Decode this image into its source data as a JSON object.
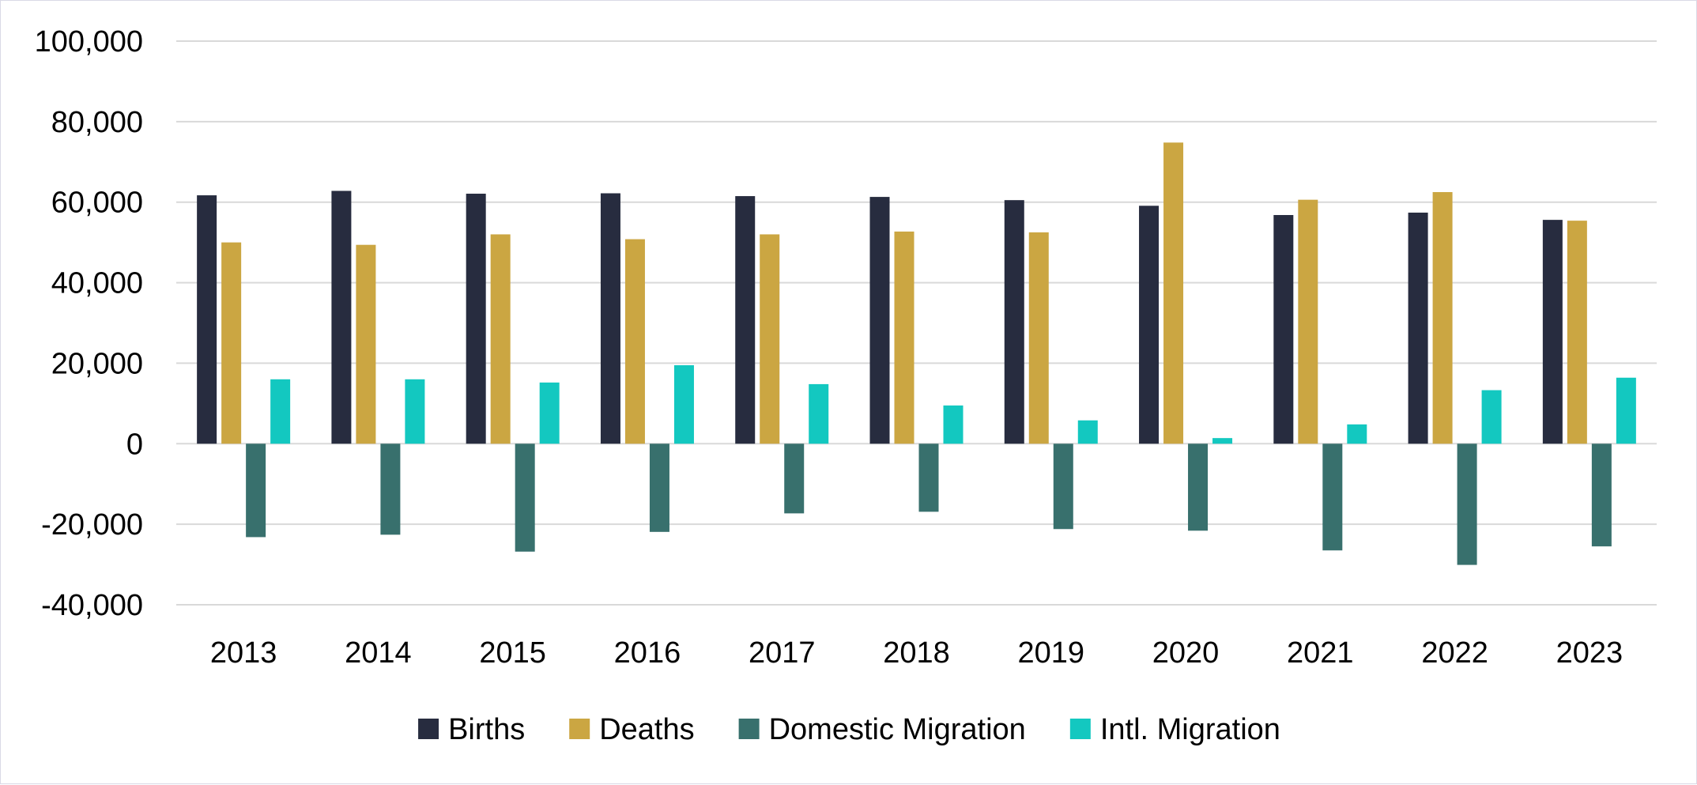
{
  "chart_data": {
    "type": "bar",
    "title": "",
    "xlabel": "",
    "ylabel": "",
    "categories": [
      "2013",
      "2014",
      "2015",
      "2016",
      "2017",
      "2018",
      "2019",
      "2020",
      "2021",
      "2022",
      "2023"
    ],
    "ylim": [
      -40000,
      100000
    ],
    "yticks": [
      100000,
      80000,
      60000,
      40000,
      20000,
      0,
      -20000,
      -40000
    ],
    "ytick_labels": [
      "100,000",
      "80,000",
      "60,000",
      "40,000",
      "20,000",
      "0",
      "-20,000",
      "-40,000"
    ],
    "grid": true,
    "legend_position": "bottom",
    "series": [
      {
        "name": "Births",
        "color": "#272c3f",
        "values": [
          61700,
          62800,
          62100,
          62200,
          61500,
          61300,
          60500,
          59100,
          56800,
          57400,
          55600
        ]
      },
      {
        "name": "Deaths",
        "color": "#cba642",
        "values": [
          50000,
          49400,
          52000,
          50800,
          52000,
          52700,
          52500,
          74800,
          60600,
          62500,
          55400
        ]
      },
      {
        "name": "Domestic Migration",
        "color": "#38706d",
        "values": [
          -23200,
          -22600,
          -26800,
          -21900,
          -17300,
          -16900,
          -21200,
          -21600,
          -26500,
          -30100,
          -25500
        ]
      },
      {
        "name": "Intl. Migration",
        "color": "#13c8c0",
        "values": [
          16000,
          16000,
          15200,
          19500,
          14800,
          9500,
          5800,
          1400,
          4800,
          13300,
          16400
        ]
      }
    ]
  }
}
